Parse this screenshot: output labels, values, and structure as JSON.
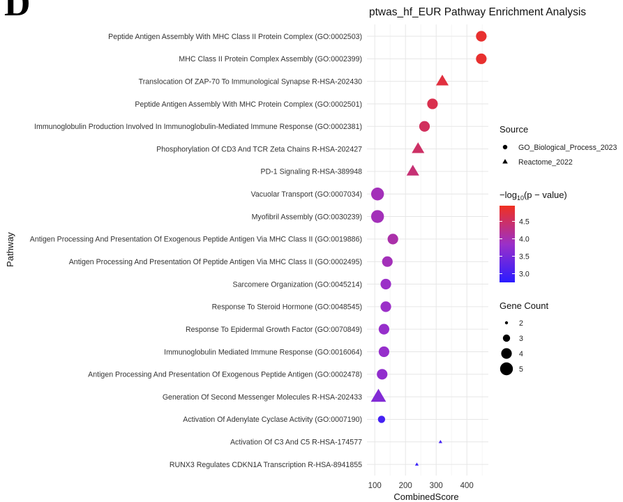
{
  "panel_letter": "D",
  "chart_data": {
    "type": "scatter",
    "title": "ptwas_hf_EUR Pathway Enrichment Analysis",
    "xlabel": "CombinedScore",
    "ylabel": "Pathway",
    "xlim": [
      70,
      470
    ],
    "xticks": [
      100,
      200,
      300,
      400
    ],
    "grid": true,
    "color_scale": {
      "low": "#2b1cff",
      "mid": "#9b30c8",
      "high": "#f03020",
      "domain": [
        2.75,
        4.95
      ]
    },
    "points": [
      {
        "pathway": "Peptide Antigen Assembly With MHC Class II Protein Complex (GO:0002503)",
        "x": 447,
        "source": "GO_Biological_Process_2023",
        "neglog10p": 4.85,
        "gene_count": 4
      },
      {
        "pathway": "MHC Class II Protein Complex Assembly (GO:0002399)",
        "x": 447,
        "source": "GO_Biological_Process_2023",
        "neglog10p": 4.85,
        "gene_count": 4
      },
      {
        "pathway": "Translocation Of ZAP-70 To Immunological Synapse R-HSA-202430",
        "x": 320,
        "source": "Reactome_2022",
        "neglog10p": 4.75,
        "gene_count": 4
      },
      {
        "pathway": "Peptide Antigen Assembly With MHC Protein Complex (GO:0002501)",
        "x": 288,
        "source": "GO_Biological_Process_2023",
        "neglog10p": 4.65,
        "gene_count": 4
      },
      {
        "pathway": "Immunoglobulin Production Involved In Immunoglobulin-Mediated Immune Response (GO:0002381)",
        "x": 262,
        "source": "GO_Biological_Process_2023",
        "neglog10p": 4.55,
        "gene_count": 4
      },
      {
        "pathway": "Phosphorylation Of CD3 And TCR Zeta Chains R-HSA-202427",
        "x": 241,
        "source": "Reactome_2022",
        "neglog10p": 4.5,
        "gene_count": 4
      },
      {
        "pathway": "PD-1 Signaling R-HSA-389948",
        "x": 224,
        "source": "Reactome_2022",
        "neglog10p": 4.4,
        "gene_count": 4
      },
      {
        "pathway": "Vacuolar Transport (GO:0007034)",
        "x": 109,
        "source": "GO_Biological_Process_2023",
        "neglog10p": 3.95,
        "gene_count": 5
      },
      {
        "pathway": "Myofibril Assembly (GO:0030239)",
        "x": 109,
        "source": "GO_Biological_Process_2023",
        "neglog10p": 3.95,
        "gene_count": 5
      },
      {
        "pathway": "Antigen Processing And Presentation Of Exogenous Peptide Antigen Via MHC Class II (GO:0019886)",
        "x": 159,
        "source": "GO_Biological_Process_2023",
        "neglog10p": 4.05,
        "gene_count": 4
      },
      {
        "pathway": "Antigen Processing And Presentation Of Peptide Antigen Via MHC Class II (GO:0002495)",
        "x": 141,
        "source": "GO_Biological_Process_2023",
        "neglog10p": 3.95,
        "gene_count": 4
      },
      {
        "pathway": "Sarcomere Organization (GO:0045214)",
        "x": 136,
        "source": "GO_Biological_Process_2023",
        "neglog10p": 3.85,
        "gene_count": 4
      },
      {
        "pathway": "Response To Steroid Hormone (GO:0048545)",
        "x": 136,
        "source": "GO_Biological_Process_2023",
        "neglog10p": 3.85,
        "gene_count": 4
      },
      {
        "pathway": "Response To Epidermal Growth Factor (GO:0070849)",
        "x": 130,
        "source": "GO_Biological_Process_2023",
        "neglog10p": 3.8,
        "gene_count": 4
      },
      {
        "pathway": "Immunoglobulin Mediated Immune Response (GO:0016064)",
        "x": 130,
        "source": "GO_Biological_Process_2023",
        "neglog10p": 3.8,
        "gene_count": 4
      },
      {
        "pathway": "Antigen Processing And Presentation Of Exogenous Peptide Antigen (GO:0002478)",
        "x": 124,
        "source": "GO_Biological_Process_2023",
        "neglog10p": 3.75,
        "gene_count": 4
      },
      {
        "pathway": "Generation Of Second Messenger Molecules R-HSA-202433",
        "x": 112,
        "source": "Reactome_2022",
        "neglog10p": 3.6,
        "gene_count": 5
      },
      {
        "pathway": "Activation Of Adenylate Cyclase Activity (GO:0007190)",
        "x": 122,
        "source": "GO_Biological_Process_2023",
        "neglog10p": 3.0,
        "gene_count": 3
      },
      {
        "pathway": "Activation Of C3 And C5 R-HSA-174577",
        "x": 314,
        "source": "Reactome_2022",
        "neglog10p": 3.0,
        "gene_count": 2
      },
      {
        "pathway": "RUNX3 Regulates CDKN1A Transcription R-HSA-8941855",
        "x": 237,
        "source": "Reactome_2022",
        "neglog10p": 2.85,
        "gene_count": 2
      }
    ],
    "legend": {
      "placement": "right",
      "source": {
        "title": "Source",
        "entries": [
          {
            "label": "GO_Biological_Process_2023",
            "shape": "circle"
          },
          {
            "label": "Reactome_2022",
            "shape": "triangle"
          }
        ]
      },
      "pvalue": {
        "title_prefix": "−log",
        "title_sub": "10",
        "title_suffix": "(p − value)",
        "ticks": [
          3.0,
          3.5,
          4.0,
          4.5
        ],
        "tick_labels": [
          "3.0",
          "3.5",
          "4.0",
          "4.5"
        ]
      },
      "gene_count": {
        "title": "Gene Count",
        "values": [
          2,
          3,
          4,
          5
        ],
        "labels": [
          "2",
          "3",
          "4",
          "5"
        ]
      }
    }
  }
}
